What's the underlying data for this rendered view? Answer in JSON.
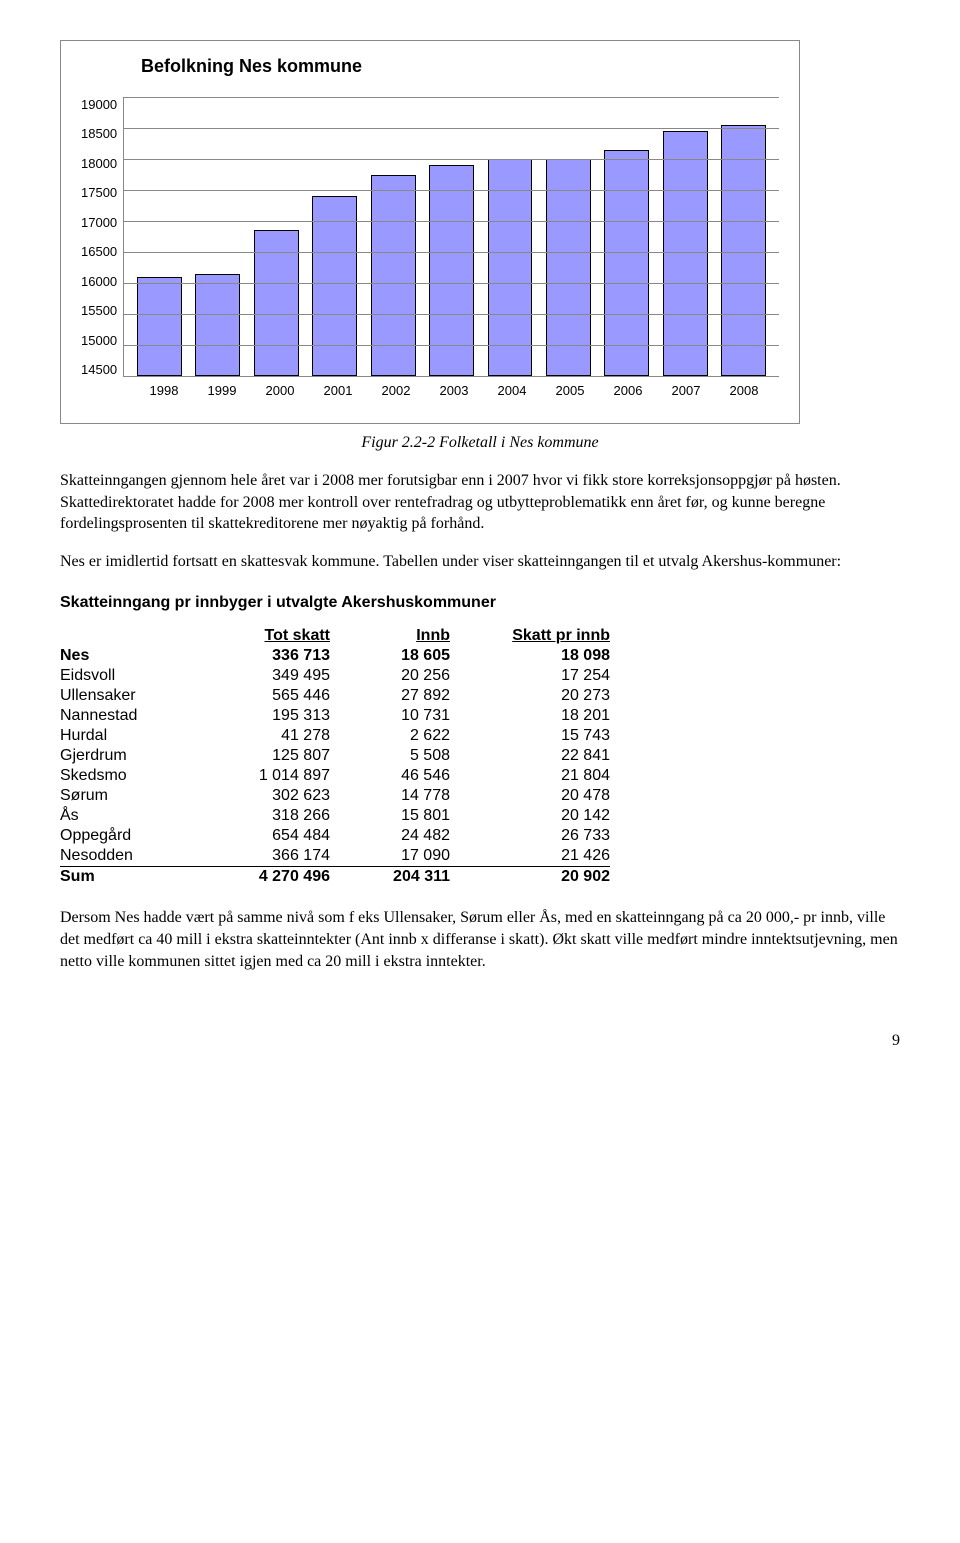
{
  "chart": {
    "type": "bar",
    "title": "Befolkning Nes kommune",
    "categories": [
      "1998",
      "1999",
      "2000",
      "2001",
      "2002",
      "2003",
      "2004",
      "2005",
      "2006",
      "2007",
      "2008"
    ],
    "values": [
      16100,
      16150,
      16850,
      17400,
      17750,
      17900,
      18000,
      18000,
      18150,
      18450,
      18550
    ],
    "ylim_min": 14500,
    "ylim_max": 19000,
    "ytick_step": 500,
    "yticks": [
      "19000",
      "18500",
      "18000",
      "17500",
      "17000",
      "16500",
      "16000",
      "15500",
      "15000",
      "14500"
    ],
    "bar_fill": "#9999ff",
    "bar_border": "#000000",
    "grid_color": "#888888",
    "background_color": "#ffffff",
    "title_fontsize": 18,
    "axis_fontsize": 13,
    "bar_width_pct": 7
  },
  "caption": "Figur 2.2-2 Folketall i Nes kommune",
  "para1": "Skatteinngangen gjennom hele året var i 2008 mer forutsigbar enn i 2007 hvor vi fikk store korreksjonsoppgjør på høsten. Skattedirektoratet hadde for 2008 mer kontroll over rentefradrag og utbytteproblematikk enn året før, og kunne beregne fordelingsprosenten til skattekreditorene mer nøyaktig på forhånd.",
  "para2": "Nes er imidlertid fortsatt en skattesvak kommune. Tabellen under viser skatteinngangen til et utvalg Akershus-kommuner:",
  "table": {
    "heading": "Skatteinngang pr innbyger i utvalgte Akershuskommuner",
    "columns": [
      "",
      "Tot skatt",
      "Innb",
      "Skatt pr innb"
    ],
    "bold_row_index": 0,
    "rows": [
      [
        "Nes",
        "336 713",
        "18 605",
        "18 098"
      ],
      [
        "Eidsvoll",
        "349 495",
        "20 256",
        "17 254"
      ],
      [
        "Ullensaker",
        "565 446",
        "27 892",
        "20 273"
      ],
      [
        "Nannestad",
        "195 313",
        "10 731",
        "18 201"
      ],
      [
        "Hurdal",
        "41 278",
        "2 622",
        "15 743"
      ],
      [
        "Gjerdrum",
        "125 807",
        "5 508",
        "22 841"
      ],
      [
        "Skedsmo",
        "1 014 897",
        "46 546",
        "21 804"
      ],
      [
        "Sørum",
        "302 623",
        "14 778",
        "20 478"
      ],
      [
        "Ås",
        "318 266",
        "15 801",
        "20 142"
      ],
      [
        "Oppegård",
        "654 484",
        "24 482",
        "26 733"
      ],
      [
        "Nesodden",
        "366 174",
        "17 090",
        "21 426"
      ]
    ],
    "sum_row": [
      "Sum",
      "4 270 496",
      "204 311",
      "20 902"
    ]
  },
  "para3": "Dersom Nes hadde vært på samme nivå som f eks Ullensaker, Sørum eller Ås, med en skatteinngang på ca 20 000,- pr innb, ville det medført ca 40 mill i ekstra skatteinntekter (Ant innb x differanse i skatt). Økt skatt ville medført mindre inntektsutjevning, men netto ville kommunen sittet igjen med ca 20 mill i ekstra inntekter.",
  "page_number": "9"
}
